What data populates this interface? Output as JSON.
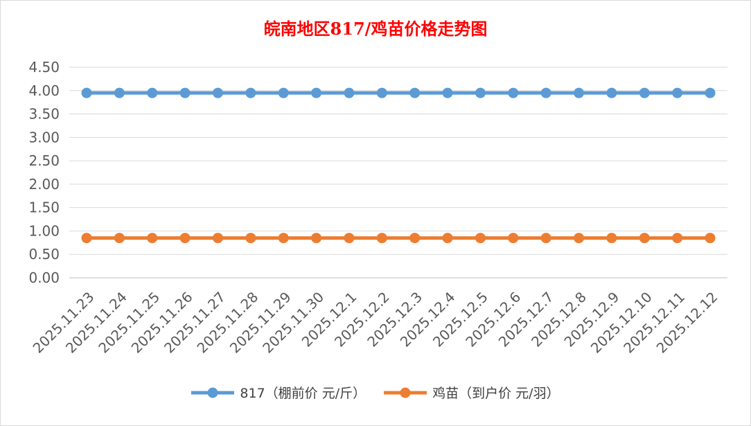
{
  "chart_data": {
    "type": "line",
    "title": "皖南地区817/鸡苗价格走势图",
    "xlabel": "",
    "ylabel": "",
    "categories": [
      "2025.11.23",
      "2025.11.24",
      "2025.11.25",
      "2025.11.26",
      "2025.11.27",
      "2025.11.28",
      "2025.11.29",
      "2025.11.30",
      "2025.12.1",
      "2025.12.2",
      "2025.12.3",
      "2025.12.4",
      "2025.12.5",
      "2025.12.6",
      "2025.12.7",
      "2025.12.8",
      "2025.12.9",
      "2025.12.10",
      "2025.12.11",
      "2025.12.12"
    ],
    "ylim": [
      0,
      4.5
    ],
    "yticks": [
      "0.00",
      "0.50",
      "1.00",
      "1.50",
      "2.00",
      "2.50",
      "3.00",
      "3.50",
      "4.00",
      "4.50"
    ],
    "grid": true,
    "legend_position": "bottom",
    "series": [
      {
        "name": "817（棚前价 元/斤）",
        "color": "#5b9bd5",
        "values": [
          3.95,
          3.95,
          3.95,
          3.95,
          3.95,
          3.95,
          3.95,
          3.95,
          3.95,
          3.95,
          3.95,
          3.95,
          3.95,
          3.95,
          3.95,
          3.95,
          3.95,
          3.95,
          3.95,
          3.95
        ]
      },
      {
        "name": "鸡苗（到户价 元/羽）",
        "color": "#ed7d31",
        "values": [
          0.85,
          0.85,
          0.85,
          0.85,
          0.85,
          0.85,
          0.85,
          0.85,
          0.85,
          0.85,
          0.85,
          0.85,
          0.85,
          0.85,
          0.85,
          0.85,
          0.85,
          0.85,
          0.85,
          0.85
        ]
      }
    ]
  }
}
